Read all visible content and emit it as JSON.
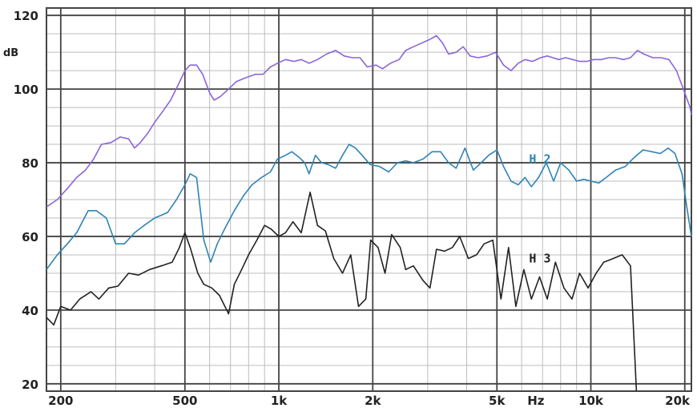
{
  "chart_data": {
    "type": "line",
    "title": "",
    "xlabel": "Hz",
    "ylabel": "dB",
    "xscale": "log",
    "xlim": [
      180,
      21000
    ],
    "ylim": [
      18,
      122
    ],
    "grid": true,
    "x_tick_values": [
      200,
      500,
      1000,
      2000,
      5000,
      10000,
      20000
    ],
    "x_tick_labels": [
      "200",
      "500",
      "1k",
      "2k",
      "5k",
      "10k",
      "20k"
    ],
    "y_ticks": [
      20,
      40,
      60,
      80,
      100,
      120
    ],
    "series": [
      {
        "name": "",
        "color": "#8a66d8",
        "points": [
          [
            180,
            68
          ],
          [
            195,
            70
          ],
          [
            210,
            73
          ],
          [
            225,
            76
          ],
          [
            240,
            78
          ],
          [
            255,
            81
          ],
          [
            270,
            85
          ],
          [
            290,
            85.5
          ],
          [
            310,
            87
          ],
          [
            330,
            86.5
          ],
          [
            345,
            84
          ],
          [
            360,
            85.5
          ],
          [
            380,
            88
          ],
          [
            400,
            91
          ],
          [
            425,
            94
          ],
          [
            450,
            97
          ],
          [
            475,
            101
          ],
          [
            500,
            105
          ],
          [
            520,
            106.5
          ],
          [
            545,
            106.5
          ],
          [
            570,
            104
          ],
          [
            600,
            99
          ],
          [
            620,
            97
          ],
          [
            650,
            98
          ],
          [
            690,
            100
          ],
          [
            730,
            102
          ],
          [
            780,
            103
          ],
          [
            840,
            104
          ],
          [
            890,
            104
          ],
          [
            940,
            106
          ],
          [
            990,
            107
          ],
          [
            1050,
            108
          ],
          [
            1120,
            107.5
          ],
          [
            1180,
            108
          ],
          [
            1250,
            107
          ],
          [
            1330,
            108
          ],
          [
            1420,
            109.5
          ],
          [
            1520,
            110.5
          ],
          [
            1620,
            109
          ],
          [
            1720,
            108.5
          ],
          [
            1820,
            108.5
          ],
          [
            1920,
            106
          ],
          [
            2050,
            106.5
          ],
          [
            2150,
            105.5
          ],
          [
            2280,
            107
          ],
          [
            2430,
            108
          ],
          [
            2550,
            110.5
          ],
          [
            2700,
            111.5
          ],
          [
            2870,
            112.5
          ],
          [
            3050,
            113.5
          ],
          [
            3200,
            114.5
          ],
          [
            3350,
            112.5
          ],
          [
            3500,
            109.5
          ],
          [
            3700,
            110
          ],
          [
            3900,
            111.5
          ],
          [
            4100,
            109
          ],
          [
            4350,
            108.5
          ],
          [
            4650,
            109
          ],
          [
            4950,
            110
          ],
          [
            5250,
            106.5
          ],
          [
            5550,
            105
          ],
          [
            5850,
            107
          ],
          [
            6150,
            108
          ],
          [
            6500,
            107.5
          ],
          [
            6900,
            108.5
          ],
          [
            7250,
            109
          ],
          [
            7550,
            108.5
          ],
          [
            7900,
            108
          ],
          [
            8300,
            108.5
          ],
          [
            8750,
            108
          ],
          [
            9200,
            107.5
          ],
          [
            9700,
            107.5
          ],
          [
            10200,
            108
          ],
          [
            10800,
            108
          ],
          [
            11400,
            108.5
          ],
          [
            12000,
            108.5
          ],
          [
            12700,
            108
          ],
          [
            13400,
            108.5
          ],
          [
            14100,
            110.5
          ],
          [
            14800,
            109.5
          ],
          [
            15800,
            108.5
          ],
          [
            16800,
            108.5
          ],
          [
            17800,
            108
          ],
          [
            18800,
            105
          ],
          [
            19800,
            100
          ],
          [
            20800,
            95
          ],
          [
            21000,
            93
          ]
        ]
      },
      {
        "name": "H2",
        "color": "#2e83b6",
        "points": [
          [
            180,
            51
          ],
          [
            195,
            55
          ],
          [
            210,
            58
          ],
          [
            225,
            61
          ],
          [
            245,
            67
          ],
          [
            260,
            67
          ],
          [
            280,
            65
          ],
          [
            300,
            58
          ],
          [
            320,
            58
          ],
          [
            345,
            61
          ],
          [
            370,
            63
          ],
          [
            400,
            65
          ],
          [
            440,
            66.5
          ],
          [
            470,
            70
          ],
          [
            500,
            74
          ],
          [
            520,
            77
          ],
          [
            545,
            76
          ],
          [
            575,
            59
          ],
          [
            605,
            53
          ],
          [
            635,
            58
          ],
          [
            670,
            62
          ],
          [
            720,
            67
          ],
          [
            770,
            71
          ],
          [
            820,
            74
          ],
          [
            880,
            76
          ],
          [
            940,
            77.5
          ],
          [
            990,
            81
          ],
          [
            1050,
            82
          ],
          [
            1100,
            83
          ],
          [
            1160,
            81.5
          ],
          [
            1210,
            80
          ],
          [
            1250,
            77
          ],
          [
            1310,
            82
          ],
          [
            1370,
            80
          ],
          [
            1440,
            79.5
          ],
          [
            1520,
            78.5
          ],
          [
            1600,
            82
          ],
          [
            1680,
            85
          ],
          [
            1760,
            84
          ],
          [
            1850,
            82
          ],
          [
            1960,
            79.5
          ],
          [
            2100,
            79
          ],
          [
            2250,
            77.5
          ],
          [
            2400,
            80
          ],
          [
            2550,
            80.5
          ],
          [
            2700,
            80
          ],
          [
            2900,
            81
          ],
          [
            3100,
            83
          ],
          [
            3300,
            83
          ],
          [
            3500,
            80
          ],
          [
            3700,
            78.5
          ],
          [
            3950,
            84
          ],
          [
            4200,
            78
          ],
          [
            4450,
            80
          ],
          [
            4700,
            82
          ],
          [
            5000,
            83.5
          ],
          [
            5250,
            79
          ],
          [
            5550,
            75
          ],
          [
            5850,
            74
          ],
          [
            6150,
            76
          ],
          [
            6450,
            73.5
          ],
          [
            6800,
            76
          ],
          [
            7200,
            80
          ],
          [
            7600,
            75
          ],
          [
            8000,
            80
          ],
          [
            8500,
            78
          ],
          [
            9000,
            75
          ],
          [
            9500,
            75.5
          ],
          [
            10000,
            75
          ],
          [
            10600,
            74.5
          ],
          [
            11200,
            76
          ],
          [
            12000,
            78
          ],
          [
            12900,
            79
          ],
          [
            13800,
            81.5
          ],
          [
            14700,
            83.5
          ],
          [
            15700,
            83
          ],
          [
            16700,
            82.5
          ],
          [
            17700,
            84
          ],
          [
            18600,
            82.5
          ],
          [
            19600,
            77
          ],
          [
            20300,
            68
          ],
          [
            21000,
            60
          ]
        ]
      },
      {
        "name": "H3",
        "color": "#222222",
        "points": [
          [
            180,
            38
          ],
          [
            190,
            36
          ],
          [
            200,
            41
          ],
          [
            215,
            40
          ],
          [
            230,
            43
          ],
          [
            250,
            45
          ],
          [
            265,
            43
          ],
          [
            285,
            46
          ],
          [
            305,
            46.5
          ],
          [
            330,
            50
          ],
          [
            355,
            49.5
          ],
          [
            385,
            51
          ],
          [
            420,
            52
          ],
          [
            455,
            53
          ],
          [
            480,
            57
          ],
          [
            500,
            61
          ],
          [
            520,
            57
          ],
          [
            550,
            50
          ],
          [
            575,
            47
          ],
          [
            610,
            46
          ],
          [
            645,
            44
          ],
          [
            690,
            39
          ],
          [
            720,
            47
          ],
          [
            760,
            51
          ],
          [
            800,
            55
          ],
          [
            850,
            59
          ],
          [
            900,
            63
          ],
          [
            945,
            62
          ],
          [
            1000,
            60
          ],
          [
            1050,
            61
          ],
          [
            1110,
            64
          ],
          [
            1180,
            61
          ],
          [
            1260,
            72
          ],
          [
            1330,
            63
          ],
          [
            1410,
            61.5
          ],
          [
            1500,
            54
          ],
          [
            1600,
            50
          ],
          [
            1700,
            55
          ],
          [
            1800,
            41
          ],
          [
            1900,
            43
          ],
          [
            1970,
            59
          ],
          [
            2080,
            57
          ],
          [
            2190,
            50
          ],
          [
            2300,
            60.5
          ],
          [
            2450,
            57
          ],
          [
            2550,
            51
          ],
          [
            2700,
            52
          ],
          [
            2900,
            48
          ],
          [
            3050,
            46
          ],
          [
            3200,
            56.5
          ],
          [
            3400,
            56
          ],
          [
            3600,
            57
          ],
          [
            3800,
            60
          ],
          [
            4050,
            54
          ],
          [
            4300,
            55
          ],
          [
            4550,
            58
          ],
          [
            4850,
            59
          ],
          [
            5150,
            43
          ],
          [
            5450,
            57
          ],
          [
            5750,
            41
          ],
          [
            6100,
            51
          ],
          [
            6450,
            43
          ],
          [
            6850,
            49
          ],
          [
            7250,
            43
          ],
          [
            7700,
            53
          ],
          [
            8200,
            46
          ],
          [
            8700,
            43
          ],
          [
            9200,
            50
          ],
          [
            9800,
            46
          ],
          [
            10400,
            50
          ],
          [
            11000,
            53
          ],
          [
            11800,
            54
          ],
          [
            12600,
            55
          ],
          [
            13400,
            52
          ],
          [
            14000,
            18
          ]
        ]
      }
    ],
    "series_labels": [
      {
        "text": "H2",
        "at": [
          5700,
          81
        ]
      },
      {
        "text": "H3",
        "at": [
          5700,
          54
        ]
      }
    ]
  }
}
